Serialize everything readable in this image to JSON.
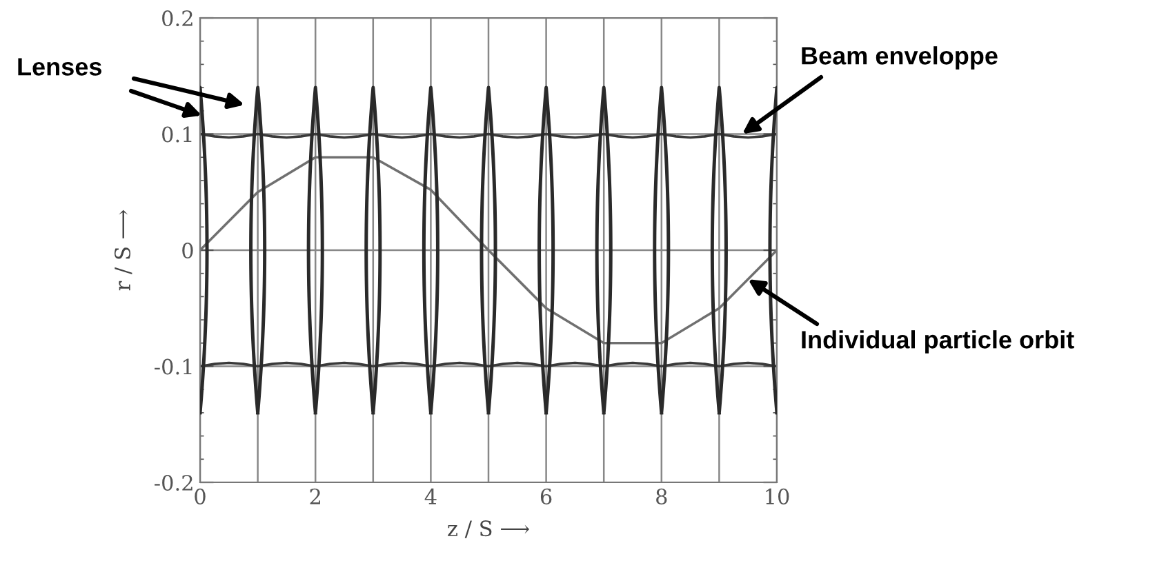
{
  "chart_data": {
    "type": "line",
    "xlabel": "z / S ⟶",
    "ylabel": "r / S ⟶",
    "x": [
      0,
      0.25,
      0.5,
      0.75,
      1,
      1.25,
      1.5,
      1.75,
      2,
      2.25,
      2.5,
      2.75,
      3,
      3.25,
      3.5,
      3.75,
      4,
      4.25,
      4.5,
      4.75,
      5,
      5.25,
      5.5,
      5.75,
      6,
      6.25,
      6.5,
      6.75,
      7,
      7.25,
      7.5,
      7.75,
      8,
      8.25,
      8.5,
      8.75,
      9,
      9.25,
      9.5,
      9.75,
      10
    ],
    "series": [
      {
        "color": "#3a3a3a",
        "values": [
          0.1,
          0.098,
          0.097,
          0.098,
          0.1,
          0.098,
          0.097,
          0.098,
          0.1,
          0.098,
          0.097,
          0.098,
          0.1,
          0.098,
          0.097,
          0.098,
          0.1,
          0.098,
          0.097,
          0.098,
          0.1,
          0.098,
          0.097,
          0.098,
          0.1,
          0.098,
          0.097,
          0.098,
          0.1,
          0.098,
          0.097,
          0.098,
          0.1,
          0.098,
          0.097,
          0.098,
          0.1,
          0.098,
          0.097,
          0.098,
          0.1
        ]
      },
      {
        "color": "#3a3a3a",
        "values": [
          -0.1,
          -0.098,
          -0.097,
          -0.098,
          -0.1,
          -0.098,
          -0.097,
          -0.098,
          -0.1,
          -0.098,
          -0.097,
          -0.098,
          -0.1,
          -0.098,
          -0.097,
          -0.098,
          -0.1,
          -0.098,
          -0.097,
          -0.098,
          -0.1,
          -0.098,
          -0.097,
          -0.098,
          -0.1,
          -0.098,
          -0.097,
          -0.098,
          -0.1,
          -0.098,
          -0.097,
          -0.098,
          -0.1,
          -0.098,
          -0.097,
          -0.098,
          -0.1,
          -0.098,
          -0.097,
          -0.098,
          -0.1
        ]
      },
      {
        "color": "#707070",
        "x": [
          0,
          1,
          2,
          3,
          4,
          5,
          6,
          7,
          8,
          9,
          10
        ],
        "values": [
          0,
          0.05,
          0.08,
          0.08,
          0.052,
          0,
          -0.05,
          -0.08,
          -0.08,
          -0.05,
          0
        ]
      }
    ],
    "xlim": [
      0,
      10
    ],
    "ylim": [
      -0.2,
      0.2
    ],
    "xticks": [
      0,
      {
        "value": 1,
        "label": null
      },
      2,
      {
        "value": 3,
        "label": null
      },
      4,
      {
        "value": 5,
        "label": null
      },
      6,
      {
        "value": 7,
        "label": null
      },
      8,
      {
        "value": 9,
        "label": null
      },
      10
    ],
    "yticks": [
      -0.2,
      -0.1,
      0,
      0.1,
      0.2
    ],
    "grid": true,
    "marker": "none",
    "line_style": "solid",
    "annotations": [
      "Lenses",
      {
        "text": "Beam enveloppe",
        "x": 9.4,
        "y": 0.1
      },
      {
        "text": "Individual particle orbit",
        "x": 9.5,
        "y": -0.025
      }
    ]
  }
}
